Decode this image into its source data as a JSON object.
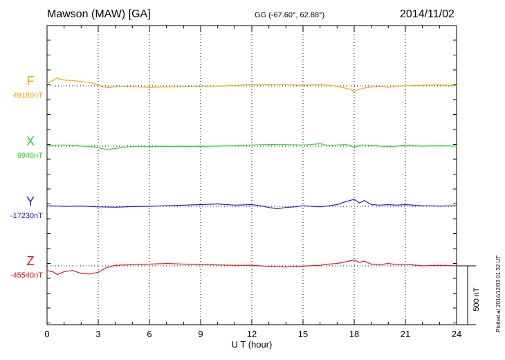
{
  "header": {
    "station": "Mawson (MAW)  [GA]",
    "coords": "GG (-67.60°,  62.88°)",
    "date": "2014/11/02"
  },
  "plotted_note": "Plotted at 2014/12/03 01:32 UT",
  "chart_data": {
    "type": "line",
    "xlabel": "U T (hour)",
    "xlim": [
      0,
      24
    ],
    "x_ticks": [
      0,
      3,
      6,
      9,
      12,
      15,
      18,
      21,
      24
    ],
    "scale_bar": {
      "label": "500 nT",
      "value": 500
    },
    "grid": "dotted vertical every 3 h; dotted baselines",
    "series": [
      {
        "name": "F",
        "baseline_label": "49180nT",
        "color": "#f5a800",
        "baseline_nT": 49180,
        "x": [
          0,
          0.4,
          0.6,
          0.8,
          1.0,
          1.5,
          2.0,
          2.5,
          3.0,
          3.3,
          3.6,
          3.9,
          4.2,
          5.0,
          6.0,
          7.0,
          8.0,
          9.0,
          10.0,
          11.0,
          11.5,
          12.0,
          13.0,
          14.0,
          15.0,
          15.5,
          16.0,
          16.5,
          17.0,
          17.5,
          17.8,
          18.0,
          18.2,
          18.5,
          19.0,
          19.5,
          20.0,
          20.5,
          21.0,
          22.0,
          23.0,
          24.0
        ],
        "y": [
          40,
          100,
          140,
          110,
          100,
          90,
          75,
          60,
          20,
          -20,
          -30,
          -20,
          -10,
          -15,
          -25,
          -20,
          -15,
          -10,
          -5,
          5,
          15,
          20,
          25,
          20,
          10,
          15,
          20,
          10,
          -10,
          -40,
          -60,
          -100,
          -70,
          -40,
          -20,
          -10,
          -25,
          -5,
          0,
          10,
          15,
          5
        ]
      },
      {
        "name": "X",
        "baseline_label": "6940nT",
        "color": "#22dd22",
        "baseline_nT": 6940,
        "x": [
          0,
          0.5,
          1.0,
          1.5,
          2.0,
          2.5,
          3.0,
          3.5,
          4.0,
          4.5,
          5.0,
          6.0,
          7.0,
          8.0,
          9.0,
          10.0,
          11.0,
          12.0,
          13.0,
          14.0,
          15.0,
          16.0,
          16.5,
          17.0,
          17.5,
          18.0,
          18.5,
          19.0,
          20.0,
          21.0,
          22.0,
          23.0,
          24.0
        ],
        "y": [
          0,
          15,
          20,
          10,
          0,
          -5,
          -30,
          -60,
          -40,
          -20,
          -10,
          -10,
          -5,
          -5,
          -5,
          0,
          5,
          20,
          30,
          25,
          20,
          40,
          10,
          20,
          30,
          -20,
          20,
          10,
          -10,
          10,
          0,
          5,
          0
        ]
      },
      {
        "name": "Y",
        "baseline_label": "-17230nT",
        "color": "#1f1fd6",
        "baseline_nT": -17230,
        "x": [
          0,
          1.0,
          2.0,
          3.0,
          4.0,
          5.0,
          6.0,
          7.0,
          8.0,
          9.0,
          10.0,
          11.0,
          12.0,
          12.5,
          13.0,
          13.5,
          14.0,
          14.5,
          15.0,
          15.5,
          16.0,
          16.5,
          17.0,
          17.5,
          18.0,
          18.3,
          18.6,
          19.0,
          19.5,
          20.0,
          20.5,
          21.0,
          22.0,
          23.0,
          24.0
        ],
        "y": [
          10,
          0,
          5,
          -10,
          -15,
          -5,
          0,
          10,
          20,
          30,
          40,
          20,
          30,
          10,
          -20,
          -40,
          -20,
          -10,
          10,
          0,
          -10,
          10,
          30,
          80,
          120,
          60,
          100,
          30,
          20,
          30,
          20,
          30,
          10,
          5,
          10
        ]
      },
      {
        "name": "Z",
        "baseline_label": "-45540nT",
        "color": "#ee1111",
        "baseline_nT": -45540,
        "x": [
          0,
          0.4,
          0.6,
          1.0,
          1.5,
          2.0,
          2.5,
          3.0,
          3.5,
          4.0,
          5.0,
          6.0,
          7.0,
          8.0,
          9.0,
          10.0,
          11.0,
          12.0,
          13.0,
          14.0,
          15.0,
          16.0,
          16.5,
          17.0,
          17.5,
          18.0,
          18.3,
          18.6,
          19.0,
          19.5,
          20.0,
          20.5,
          21.0,
          22.0,
          23.0,
          24.0
        ],
        "y": [
          -80,
          -110,
          -150,
          -100,
          -80,
          -130,
          -140,
          -110,
          -30,
          10,
          20,
          30,
          40,
          30,
          25,
          15,
          10,
          10,
          -10,
          -20,
          -5,
          10,
          30,
          40,
          70,
          100,
          60,
          80,
          30,
          20,
          40,
          20,
          30,
          0,
          10,
          0
        ]
      }
    ]
  }
}
